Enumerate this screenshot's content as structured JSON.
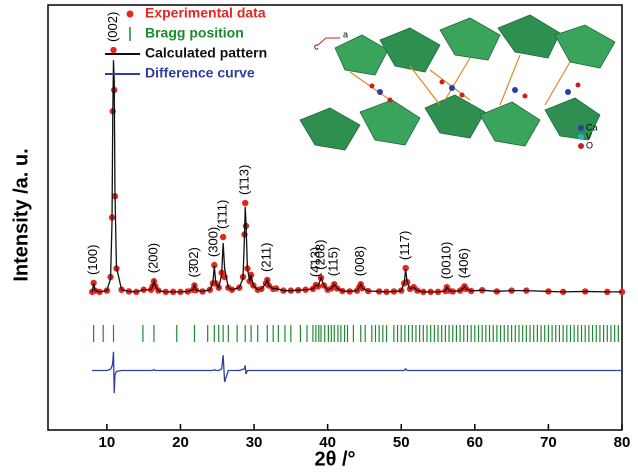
{
  "chart_data": {
    "type": "line",
    "xlabel": "2θ /°",
    "ylabel": "Intensity /a. u.",
    "xlim": [
      2,
      80
    ],
    "xticks": [
      10,
      20,
      30,
      40,
      50,
      60,
      70,
      80
    ],
    "ylim": [
      0,
      100
    ],
    "legend": "upper left",
    "x": [
      8,
      8.2,
      8.4,
      9,
      10,
      10.5,
      10.7,
      10.8,
      10.9,
      11.0,
      11.1,
      11.3,
      12,
      13,
      14,
      15,
      16,
      16.2,
      16.4,
      16.6,
      17,
      18,
      19,
      20,
      21,
      21.7,
      21.9,
      22.1,
      23,
      24,
      24.4,
      24.6,
      24.8,
      25.2,
      25.6,
      25.8,
      26.0,
      26.5,
      27,
      28,
      28.5,
      28.7,
      28.8,
      28.9,
      29.1,
      29.4,
      29.6,
      29.9,
      30.5,
      31,
      31.6,
      31.8,
      32.0,
      32.6,
      33,
      34,
      35,
      36,
      37,
      38,
      38.4,
      38.7,
      39.1,
      39.5,
      40,
      40.5,
      40.9,
      41.3,
      42,
      43,
      44,
      44.3,
      44.5,
      44.7,
      45.5,
      47,
      48,
      49,
      50,
      50.4,
      50.6,
      50.8,
      51.2,
      51.7,
      52.2,
      53,
      54,
      55,
      56,
      56.2,
      56.5,
      57,
      58,
      58.4,
      58.6,
      58.8,
      59.5,
      61,
      63,
      65,
      67,
      70,
      72,
      75,
      78,
      80
    ],
    "series": [
      {
        "name": "Experimental data",
        "color": "#e8251e",
        "style": "points",
        "values": [
          32.5,
          34.6,
          32.8,
          32.5,
          32.8,
          36,
          50,
          75,
          89.4,
          80,
          55,
          38,
          33,
          32.6,
          32.5,
          33,
          33,
          33.8,
          35,
          33.8,
          32.8,
          32.5,
          32.5,
          32.5,
          32.6,
          33,
          34,
          32.9,
          32.6,
          33,
          34.5,
          38.8,
          34.5,
          33.5,
          37,
          45.4,
          36,
          33.5,
          33,
          33.5,
          36,
          46,
          53.4,
          48,
          38,
          35,
          36.5,
          34,
          33,
          33.2,
          34.5,
          35.3,
          34,
          33.2,
          33.3,
          32.8,
          32.8,
          32.9,
          33,
          33.2,
          34.1,
          33.8,
          35.8,
          34,
          33,
          33.3,
          34.3,
          33.3,
          32.7,
          32.6,
          32.8,
          33.6,
          34.3,
          33.4,
          32.7,
          32.6,
          32.5,
          32.6,
          32.8,
          34.5,
          38.1,
          34.8,
          33.2,
          33.6,
          32.8,
          32.5,
          32.5,
          32.5,
          32.7,
          33.6,
          32.8,
          32.6,
          32.8,
          33.3,
          33.8,
          33.2,
          32.7,
          32.9,
          32.6,
          32.8,
          32.8,
          32.6,
          32.5,
          32.6,
          32.5,
          32.5
        ]
      },
      {
        "name": "Bragg position",
        "color": "#1e8a2e",
        "style": "ticks",
        "positions": [
          8.2,
          9.5,
          10.9,
          14.9,
          16.4,
          19.5,
          21.9,
          23.7,
          24.6,
          25.2,
          25.8,
          26.5,
          27.7,
          28.8,
          29.6,
          30.5,
          31.8,
          32.6,
          33.3,
          34.2,
          35.0,
          36.3,
          37.2,
          38.0,
          38.4,
          38.8,
          39.1,
          39.6,
          40.1,
          40.5,
          40.9,
          41.4,
          41.8,
          42.3,
          42.7,
          43.5,
          44.5,
          45.1,
          46,
          46.5,
          47,
          47.5,
          48,
          49,
          49.5,
          50,
          50.5,
          51,
          51.5,
          52,
          52.5,
          53,
          53.5,
          54,
          54.5,
          55,
          55.5,
          56,
          56.5,
          57,
          57.5,
          58,
          58.5,
          59,
          59.5,
          60,
          60.5,
          61,
          61.5,
          62,
          62.5,
          63,
          63.5,
          64,
          64.5,
          65,
          65.5,
          66,
          66.5,
          67,
          67.5,
          68,
          68.5,
          69,
          69.5,
          70,
          70.5,
          71,
          71.5,
          72,
          72.5,
          73,
          73.5,
          74,
          74.5,
          75,
          75.5,
          76,
          76.5,
          77,
          77.5,
          78,
          78.5,
          79,
          79.5
        ]
      },
      {
        "name": "Calculated pattern",
        "color": "#111111",
        "style": "line",
        "values": [
          32.5,
          34.5,
          32.8,
          32.5,
          32.8,
          35.6,
          49,
          74,
          87,
          82,
          56,
          38.3,
          33,
          32.6,
          32.5,
          33,
          33,
          33.8,
          35,
          33.8,
          32.8,
          32.5,
          32.5,
          32.5,
          32.6,
          33,
          34,
          32.9,
          32.6,
          33,
          34.5,
          38.6,
          34.5,
          33.5,
          36.6,
          44,
          38,
          33.5,
          33,
          33.5,
          35.7,
          45.6,
          52.5,
          49,
          38,
          35,
          36.5,
          34,
          33,
          33.2,
          34.5,
          35.3,
          34,
          33.2,
          33.3,
          32.8,
          32.8,
          32.9,
          33,
          33.2,
          34.1,
          33.8,
          35.8,
          34,
          33,
          33.3,
          34.3,
          33.3,
          32.7,
          32.6,
          32.8,
          33.6,
          34.3,
          33.4,
          32.7,
          32.6,
          32.5,
          32.6,
          32.8,
          34.5,
          37.8,
          34.8,
          33.2,
          33.6,
          32.8,
          32.5,
          32.5,
          32.5,
          32.7,
          33.6,
          32.8,
          32.6,
          32.8,
          33.3,
          33.8,
          33.2,
          32.7,
          32.9,
          32.6,
          32.8,
          32.8,
          32.6,
          32.5,
          32.6,
          32.5,
          32.5
        ]
      },
      {
        "name": "Difference curve",
        "color": "#2f3fa0",
        "style": "line",
        "values": [
          14,
          14,
          14,
          14,
          14,
          14.3,
          15,
          16,
          18.4,
          8.7,
          13,
          13.8,
          14,
          14,
          14,
          14,
          14,
          14,
          14.2,
          14,
          14,
          14,
          14,
          14,
          14,
          14,
          14,
          14,
          14,
          14,
          14,
          14.2,
          14,
          14,
          14.4,
          17.6,
          11.3,
          14,
          14,
          14,
          14.3,
          14.4,
          15.2,
          13.2,
          14,
          14,
          14,
          14,
          14,
          14,
          14,
          14,
          14,
          14,
          14,
          14,
          14,
          14,
          14,
          14,
          14,
          14,
          14,
          14,
          14,
          14,
          14,
          14,
          14,
          14,
          14,
          14,
          14,
          14,
          14,
          14,
          14,
          14,
          14,
          14,
          14.4,
          14,
          14,
          14,
          14,
          14,
          14,
          14,
          14,
          14,
          14,
          14,
          14,
          14,
          14,
          14,
          14,
          14,
          14,
          14,
          14,
          14,
          14,
          14,
          14,
          14
        ]
      }
    ],
    "annotations": [
      {
        "text": "(100)",
        "x": 8.2
      },
      {
        "text": "(002)",
        "x": 10.9
      },
      {
        "text": "(200)",
        "x": 16.4
      },
      {
        "text": "(3̄02)",
        "x": 21.9
      },
      {
        "text": "(300)",
        "x": 24.6
      },
      {
        "text": "(1̄11)",
        "x": 25.8
      },
      {
        "text": "(1̄13)",
        "x": 28.8
      },
      {
        "text": "(211)",
        "x": 31.8
      },
      {
        "text": "(4̄13)",
        "x": 38.4
      },
      {
        "text": "(208)",
        "x": 39.1
      },
      {
        "text": "(115)",
        "x": 40.9
      },
      {
        "text": "(008)",
        "x": 44.5
      },
      {
        "text": "(117)",
        "x": 50.6
      },
      {
        "text": "(0010)",
        "x": 56.2
      },
      {
        "text": "(406)",
        "x": 58.6
      }
    ],
    "inset": {
      "axes": [
        "c",
        "a"
      ],
      "legend": [
        "Ca",
        "V",
        "O"
      ]
    }
  }
}
